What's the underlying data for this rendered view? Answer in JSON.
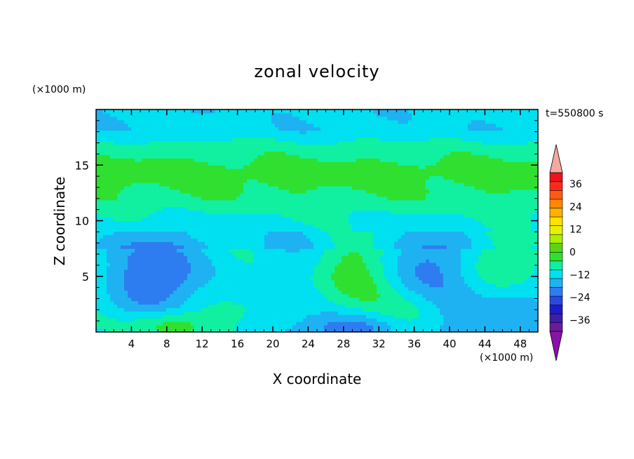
{
  "chart_data": {
    "type": "heatmap",
    "title": "zonal velocity",
    "xlabel": "X coordinate",
    "ylabel": "Z coordinate",
    "x_unit": "(×1000 m)",
    "y_unit": "(×1000 m)",
    "time_label": "t=550800 s",
    "xlim": [
      0,
      50
    ],
    "ylim": [
      0,
      20
    ],
    "x_ticks": [
      4,
      8,
      12,
      16,
      20,
      24,
      28,
      32,
      36,
      40,
      44,
      48
    ],
    "y_ticks": [
      5,
      10,
      15
    ],
    "colorbar": {
      "labels": [
        "36",
        "24",
        "12",
        "0",
        "−12",
        "−24",
        "−36"
      ],
      "label_values": [
        36,
        24,
        12,
        0,
        -12,
        -24,
        -36
      ],
      "range": [
        -42,
        42
      ],
      "level_step": 6,
      "colors_low_to_high": [
        "#6a1b9a",
        "#3d1ea8",
        "#1c1cc8",
        "#2a48e0",
        "#2e7df0",
        "#1fb2f2",
        "#00e0f0",
        "#10f0a0",
        "#30e030",
        "#5ad414",
        "#aaf000",
        "#e8f000",
        "#ffe200",
        "#ffb000",
        "#ff8800",
        "#ff5a14",
        "#ff2a1a",
        "#e81420"
      ],
      "over_color": "#f4a8a0",
      "under_color": "#8a12a8"
    },
    "field_description": {
      "background_value": -3,
      "bands": [
        {
          "z": 18.2,
          "value": -5
        },
        {
          "z": 16.8,
          "value": 2
        },
        {
          "z": 14.5,
          "value": 9
        },
        {
          "z": 12.0,
          "value": 5
        },
        {
          "z": 10.5,
          "value": 0
        },
        {
          "z": 9.2,
          "value": -3
        },
        {
          "z": 7.5,
          "value": -6
        }
      ],
      "features": [
        {
          "x": 7.5,
          "z": 5.2,
          "value": -16
        },
        {
          "x": 38,
          "z": 5.5,
          "value": -13
        },
        {
          "x": 29,
          "z": 0.3,
          "value": -18
        },
        {
          "x": 28.5,
          "z": 5.2,
          "value": 7
        },
        {
          "x": 45,
          "z": 6,
          "value": 6
        },
        {
          "x": 8,
          "z": 0.6,
          "value": 12
        },
        {
          "x": 36.5,
          "z": 1.8,
          "value": 5
        },
        {
          "x": 20,
          "z": 3,
          "value": 0
        },
        {
          "x": 48,
          "z": 2,
          "value": -8
        },
        {
          "x": 44,
          "z": 1,
          "value": -10
        }
      ]
    }
  }
}
